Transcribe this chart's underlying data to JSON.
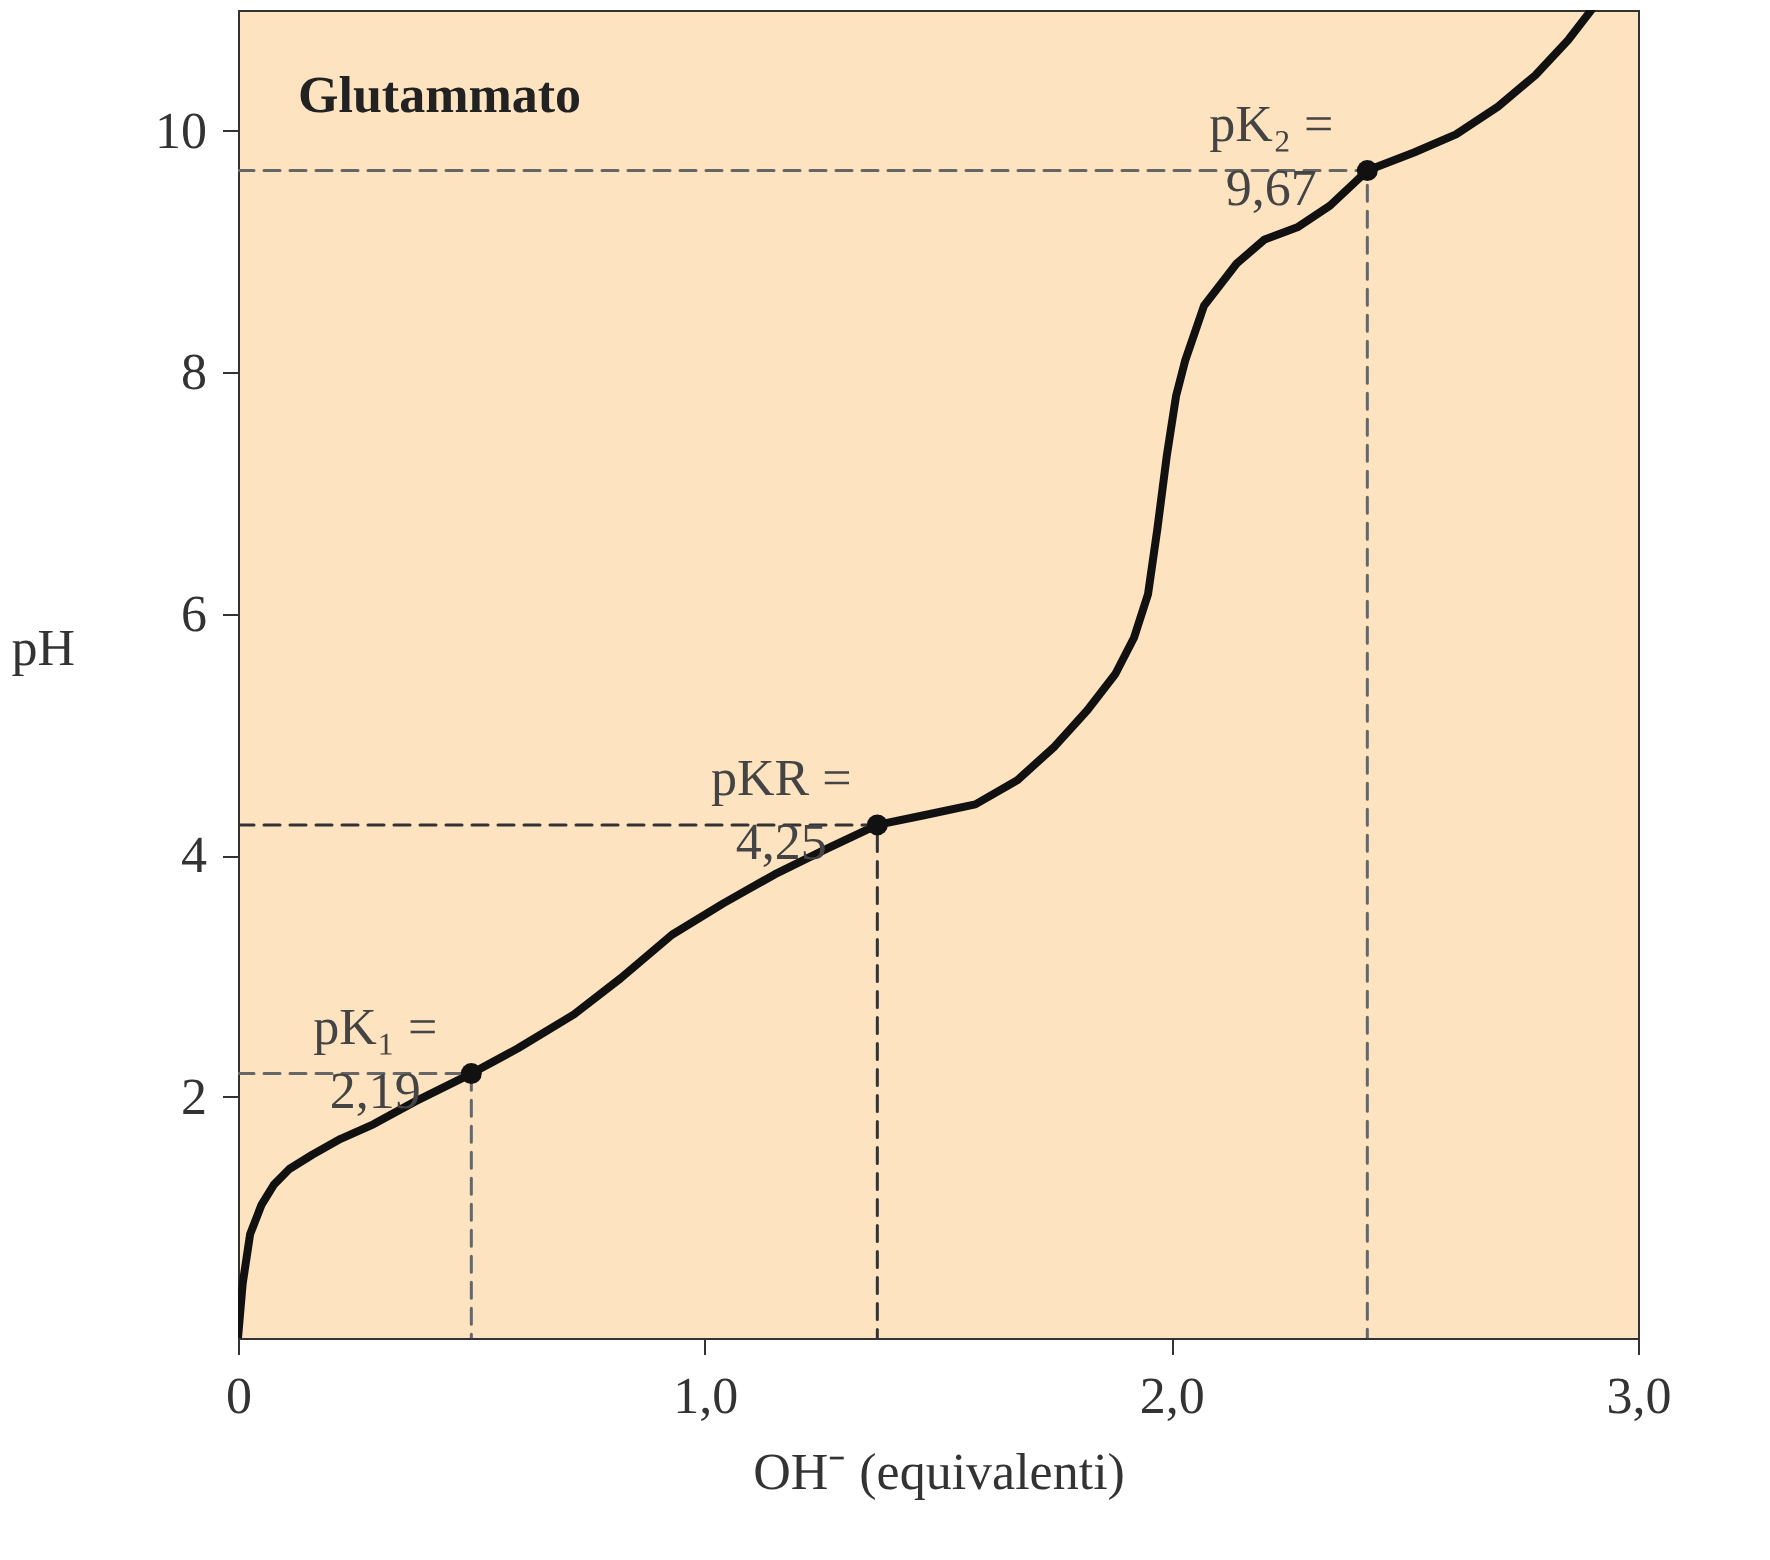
{
  "chart_data": {
    "type": "line",
    "title": "Glutammato",
    "xlabel": "OH⁻  (equivalenti)",
    "ylabel": "pH",
    "xlim": [
      0,
      3
    ],
    "ylim": [
      0,
      11
    ],
    "xticks": [
      {
        "value": 0,
        "label": "0"
      },
      {
        "value": 1,
        "label": "1,0"
      },
      {
        "value": 2,
        "label": "2,0"
      },
      {
        "value": 3,
        "label": "3,0"
      }
    ],
    "yticks": [
      2,
      4,
      6,
      8,
      10
    ],
    "grid": false,
    "series": [
      {
        "type": "line",
        "color": "#111111",
        "line_style": "solid",
        "marker": "none",
        "x": [
          0,
          0.01,
          0.026,
          0.05,
          0.077,
          0.11,
          0.16,
          0.22,
          0.29,
          0.38,
          0.5,
          0.6,
          0.72,
          0.82,
          0.93,
          1.04,
          1.15,
          1.26,
          1.37,
          1.47,
          1.58,
          1.67,
          1.75,
          1.82,
          1.88,
          1.92,
          1.95,
          1.97,
          1.99,
          2.01,
          2.03,
          2.07,
          2.14,
          2.2,
          2.27,
          2.34,
          2.42,
          2.52,
          2.61,
          2.7,
          2.78,
          2.85,
          2.9
        ],
        "values": [
          0,
          0.45,
          0.86,
          1.1,
          1.27,
          1.4,
          1.52,
          1.65,
          1.77,
          1.96,
          2.19,
          2.4,
          2.68,
          2.98,
          3.34,
          3.6,
          3.84,
          4.05,
          4.25,
          4.33,
          4.42,
          4.62,
          4.9,
          5.2,
          5.5,
          5.8,
          6.16,
          6.7,
          7.3,
          7.8,
          8.1,
          8.55,
          8.9,
          9.1,
          9.2,
          9.38,
          9.67,
          9.82,
          9.97,
          10.2,
          10.46,
          10.75,
          11
        ]
      },
      {
        "type": "line",
        "color": "#666666",
        "line_style": "dashed",
        "marker": "none",
        "x": [
          0,
          0.5,
          0.5
        ],
        "values": [
          2.19,
          2.19,
          0
        ]
      },
      {
        "type": "line",
        "color": "#333333",
        "line_style": "dashed",
        "marker": "none",
        "x": [
          0,
          1.37,
          1.37
        ],
        "values": [
          4.25,
          4.25,
          0
        ]
      },
      {
        "type": "line",
        "color": "#666666",
        "line_style": "dashed",
        "marker": "none",
        "x": [
          0,
          2.42,
          2.42
        ],
        "values": [
          9.67,
          9.67,
          0
        ]
      },
      {
        "type": "scatter",
        "color": "#111111",
        "marker": "circle",
        "x": [
          0.5,
          1.37,
          2.42
        ],
        "values": [
          2.19,
          4.25,
          9.67
        ]
      }
    ],
    "annotations": [
      {
        "text": "pK₁ =\n2,19",
        "x": 0.5,
        "y": 2.19
      },
      {
        "text": "pKR =\n4,25",
        "x": 1.37,
        "y": 4.25
      },
      {
        "text": "pK₂ =\n9,67",
        "x": 2.42,
        "y": 9.67
      }
    ]
  }
}
